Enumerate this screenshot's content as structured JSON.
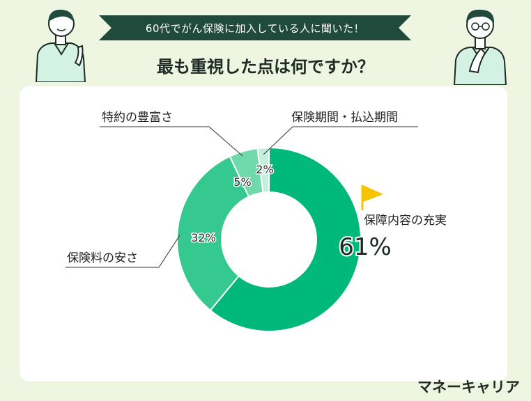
{
  "header": {
    "banner": "60代でがん保険に加入している人に聞いた！",
    "title": "最も重視した点は何ですか？"
  },
  "brand": "マネーキャリア",
  "colors": {
    "background": "#eef6e2",
    "banner": "#1f4a3c",
    "accent": "#00b67a",
    "flag": "#f6c400"
  },
  "chart_data": {
    "type": "pie",
    "style": "donut",
    "title": "最も重視した点は何ですか？",
    "slices": [
      {
        "label": "保障内容の充実",
        "value": 61,
        "value_label": "61%",
        "color": "#00b87a"
      },
      {
        "label": "保険料の安さ",
        "value": 32,
        "value_label": "32%",
        "color": "#35c88f"
      },
      {
        "label": "特約の豊富さ",
        "value": 5,
        "value_label": "5%",
        "color": "#6fd9ab"
      },
      {
        "label": "保険期間・払込期間",
        "value": 2,
        "value_label": "2%",
        "color": "#c5eedd"
      }
    ],
    "highlight": "保障内容の充実"
  }
}
